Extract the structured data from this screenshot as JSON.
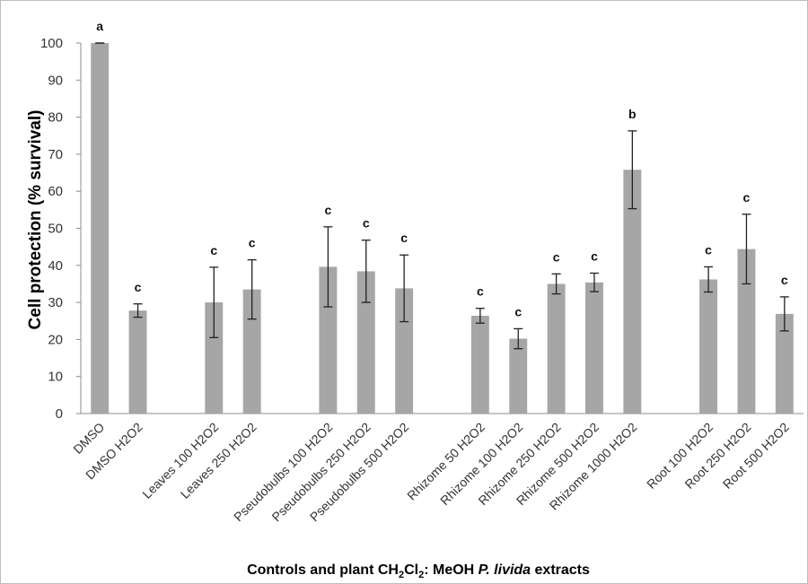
{
  "chart_data": {
    "type": "bar",
    "title": "",
    "ylabel": "Cell protection (% survival)",
    "xlabel": {
      "prefix": "Controls and plant CH",
      "sub1": "2",
      "mid": "Cl",
      "sub2": "2",
      "suffix": ": MeOH ",
      "italic": "P. livida",
      "end": " extracts"
    },
    "ylim": [
      0,
      100
    ],
    "yticks": [
      0,
      10,
      20,
      30,
      40,
      50,
      60,
      70,
      80,
      90,
      100
    ],
    "grid": false,
    "bar_color": "#a6a6a6",
    "categories": [
      "DMSO",
      "DMSO H2O2",
      "Leaves 100 H2O2",
      "Leaves 250 H2O2",
      "Pseudobulbs 100 H2O2",
      "Pseudobulbs 250 H2O2",
      "Pseudobulbs 500 H2O2",
      "Rhizome 50 H2O2",
      "Rhizome 100 H2O2",
      "Rhizome 250 H2O2",
      "Rhizome 500 H2O2",
      "Rhizome 1000 H2O2",
      "Root 100 H2O2",
      "Root 250 H2O2",
      "Root 500 H2O2"
    ],
    "groups": [
      0,
      0,
      1,
      1,
      2,
      2,
      2,
      3,
      3,
      3,
      3,
      3,
      4,
      4,
      4
    ],
    "values": [
      100,
      27.8,
      30,
      33.5,
      39.6,
      38.4,
      33.8,
      26.4,
      20.2,
      35,
      35.4,
      65.8,
      36.2,
      44.4,
      26.9
    ],
    "errors": [
      0,
      1.8,
      9.5,
      8,
      10.8,
      8.4,
      9,
      2,
      2.7,
      2.7,
      2.5,
      10.5,
      3.4,
      9.4,
      4.6
    ],
    "significance": [
      "a",
      "c",
      "c",
      "c",
      "c",
      "c",
      "c",
      "c",
      "c",
      "c",
      "c",
      "b",
      "c",
      "c",
      "c"
    ]
  }
}
